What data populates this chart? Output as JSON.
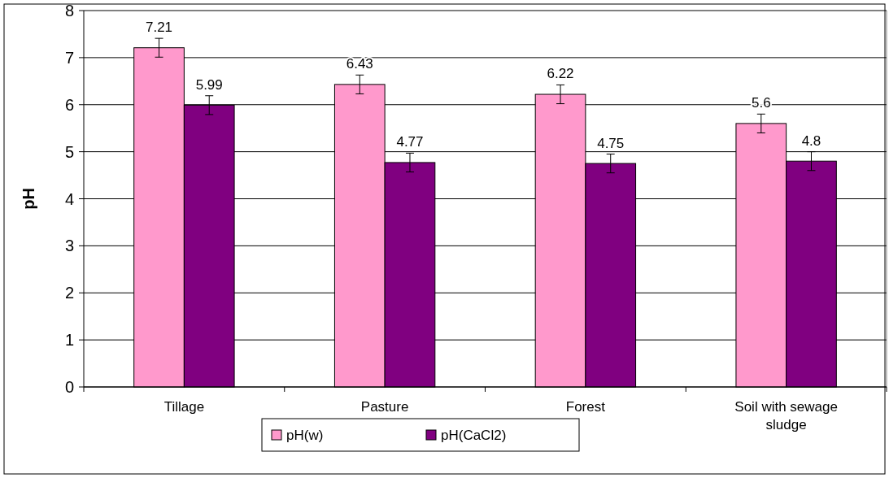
{
  "chart_data": {
    "type": "bar",
    "ylabel": "pH",
    "categories": [
      "Tillage",
      "Pasture",
      "Forest",
      "Soil with sewage sludge"
    ],
    "series": [
      {
        "name": "pH(w)",
        "color": "#ff99cc",
        "values": [
          7.21,
          6.43,
          6.22,
          5.6
        ],
        "errors": [
          0.2,
          0.2,
          0.2,
          0.2
        ]
      },
      {
        "name": "pH(CaCl2)",
        "color": "#800080",
        "values": [
          5.99,
          4.77,
          4.75,
          4.8
        ],
        "errors": [
          0.2,
          0.2,
          0.2,
          0.2
        ]
      }
    ],
    "ylim": [
      0,
      8
    ],
    "yticks": [
      0,
      1,
      2,
      3,
      4,
      5,
      6,
      7,
      8
    ],
    "grid": "y",
    "legend": "bottom",
    "data_labels": true
  }
}
